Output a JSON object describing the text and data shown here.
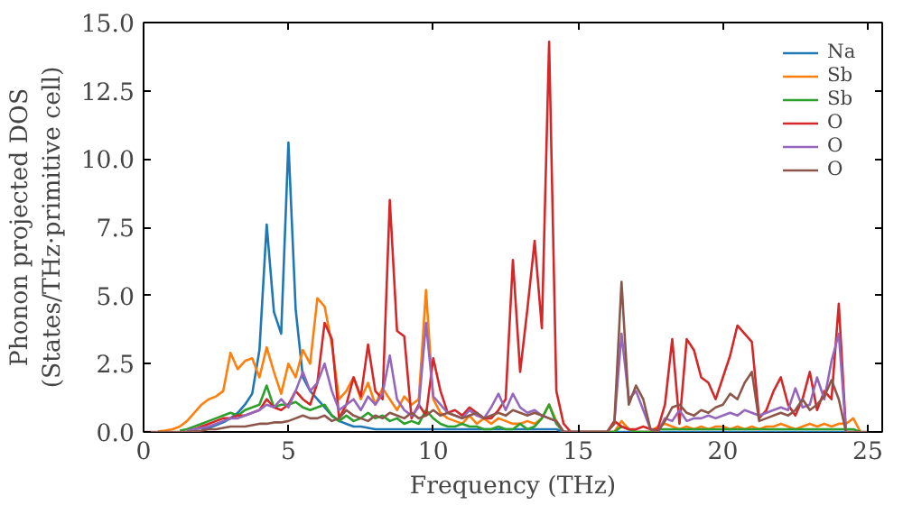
{
  "chart_data": {
    "type": "line",
    "xlabel": "Frequency (THz)",
    "ylabel": "Phonon projected DOS\n(States/THz·primitive cell)",
    "x": [
      0,
      0.25,
      0.5,
      0.75,
      1,
      1.25,
      1.5,
      1.75,
      2,
      2.25,
      2.5,
      2.75,
      3,
      3.25,
      3.5,
      3.75,
      4,
      4.25,
      4.5,
      4.75,
      5,
      5.25,
      5.5,
      5.75,
      6,
      6.25,
      6.5,
      6.75,
      7,
      7.25,
      7.5,
      7.75,
      8,
      8.25,
      8.5,
      8.75,
      9,
      9.25,
      9.5,
      9.75,
      10,
      10.25,
      10.5,
      10.75,
      11,
      11.25,
      11.5,
      11.75,
      12,
      12.25,
      12.5,
      12.75,
      13,
      13.25,
      13.5,
      13.75,
      14,
      14.25,
      14.5,
      14.75,
      15,
      15.25,
      15.5,
      15.75,
      16,
      16.25,
      16.5,
      16.75,
      17,
      17.25,
      17.5,
      17.75,
      18,
      18.25,
      18.5,
      18.75,
      19,
      19.25,
      19.5,
      19.75,
      20,
      20.25,
      20.5,
      20.75,
      21,
      21.25,
      21.5,
      21.75,
      22,
      22.25,
      22.5,
      22.75,
      23,
      23.25,
      23.5,
      23.75,
      24,
      24.25,
      24.5,
      24.75,
      25
    ],
    "series": [
      {
        "name": "Na",
        "color": "#1f77b4",
        "values": [
          null,
          null,
          null,
          null,
          null,
          null,
          null,
          null,
          0.1,
          0.15,
          0.25,
          0.35,
          0.5,
          0.7,
          1.0,
          1.4,
          3.0,
          7.6,
          4.4,
          3.6,
          10.6,
          4.5,
          2.0,
          1.5,
          1.2,
          0.9,
          0.6,
          0.4,
          0.3,
          0.2,
          0.2,
          0.15,
          0.1,
          0.1,
          0.1,
          0.1,
          0.1,
          0.1,
          0.1,
          0.1,
          0.1,
          0.1,
          0.1,
          0.1,
          0.1,
          0.1,
          0.1,
          0.1,
          0.1,
          0.1,
          0.1,
          0.1,
          0.1,
          0.1,
          0.1,
          0.1,
          0.1,
          0.1,
          0,
          0,
          0,
          0,
          0,
          0,
          0,
          0,
          0,
          0,
          0,
          0,
          0,
          0,
          0,
          0,
          0,
          0,
          0,
          0,
          0,
          0,
          0,
          0,
          0,
          0,
          0,
          0,
          0,
          0,
          0,
          0,
          0,
          0,
          0,
          0,
          0,
          0,
          0,
          0,
          0,
          null,
          null
        ]
      },
      {
        "name": "Sb",
        "color": "#ff7f0e",
        "values": [
          null,
          null,
          0.02,
          0.05,
          0.1,
          0.2,
          0.4,
          0.7,
          1.0,
          1.2,
          1.3,
          1.5,
          2.9,
          2.3,
          2.6,
          2.7,
          2.0,
          3.1,
          2.2,
          1.4,
          2.5,
          2.0,
          3.0,
          2.5,
          4.9,
          4.6,
          3.2,
          1.2,
          1.5,
          2.0,
          1.2,
          1.8,
          1.0,
          1.6,
          1.2,
          0.8,
          1.3,
          1.0,
          1.2,
          5.2,
          1.2,
          0.7,
          0.5,
          0.4,
          0.3,
          0.6,
          0.3,
          0.5,
          0.3,
          0.5,
          0.4,
          0.3,
          0.3,
          0.4,
          0.3,
          0.5,
          1.0,
          0.4,
          0,
          0,
          0,
          0,
          0,
          0,
          0,
          0,
          0.4,
          0.1,
          0,
          0,
          0,
          0.2,
          0.3,
          0.2,
          0.1,
          0.2,
          0.1,
          0.2,
          0.1,
          0.2,
          0.2,
          0.1,
          0.2,
          0.1,
          0.2,
          0.1,
          0.2,
          0.2,
          0.3,
          0.2,
          0.1,
          0.2,
          0.3,
          0.2,
          0.3,
          0.2,
          0.3,
          0.3,
          0.5,
          0,
          null
        ]
      },
      {
        "name": "Sb",
        "color": "#2ca02c",
        "values": [
          null,
          null,
          null,
          null,
          null,
          0.05,
          0.1,
          0.2,
          0.3,
          0.4,
          0.5,
          0.6,
          0.7,
          0.6,
          0.8,
          0.9,
          1.0,
          1.7,
          0.9,
          1.0,
          1.0,
          1.1,
          0.9,
          0.8,
          0.9,
          1.0,
          0.6,
          0.4,
          0.6,
          0.4,
          0.5,
          0.7,
          0.5,
          0.6,
          0.4,
          0.5,
          0.3,
          0.4,
          0.3,
          0.8,
          0.5,
          0.3,
          0.2,
          0.2,
          0.3,
          0.2,
          0.2,
          0.1,
          0.1,
          0.2,
          0.1,
          0.1,
          0.3,
          0.1,
          0.2,
          0.5,
          1.0,
          0.3,
          0,
          0,
          0,
          0,
          0,
          0,
          0,
          0,
          0.2,
          0.1,
          0,
          0,
          0,
          0.1,
          0.1,
          0.1,
          0.1,
          0.1,
          0.1,
          0.1,
          0.1,
          0.1,
          0.1,
          0.1,
          0.1,
          0.1,
          0.1,
          0.1,
          0.1,
          0.1,
          0.1,
          0.1,
          0.1,
          0.1,
          0.1,
          0.1,
          0.1,
          0.1,
          0.1,
          0.1,
          0.1,
          0,
          null
        ]
      },
      {
        "name": "O",
        "color": "#d62728",
        "values": [
          null,
          null,
          null,
          null,
          null,
          null,
          0.05,
          0.1,
          0.2,
          0.3,
          0.4,
          0.5,
          0.5,
          0.6,
          0.6,
          0.7,
          0.8,
          1.2,
          0.9,
          0.8,
          1.0,
          1.5,
          1.2,
          1.0,
          1.8,
          4.0,
          3.4,
          0.5,
          1.0,
          2.0,
          1.3,
          3.2,
          1.5,
          1.2,
          8.5,
          3.7,
          3.5,
          0.5,
          1.0,
          0.6,
          2.7,
          1.5,
          0.7,
          0.8,
          0.6,
          0.9,
          0.7,
          0.5,
          0.5,
          0.8,
          1.2,
          6.3,
          2.2,
          4.5,
          7.0,
          3.8,
          14.3,
          1.5,
          0.3,
          0,
          0,
          0,
          0,
          0,
          0,
          0.4,
          0.2,
          0.1,
          0.1,
          0.2,
          0.1,
          0.1,
          1.0,
          3.4,
          0.3,
          3.4,
          3.0,
          2.0,
          1.8,
          1.2,
          2.0,
          2.8,
          3.9,
          3.6,
          3.3,
          0.5,
          0.8,
          1.5,
          2.0,
          1.0,
          0.6,
          1.2,
          2.2,
          0.8,
          1.5,
          1.2,
          4.7,
          0,
          null,
          null,
          null
        ]
      },
      {
        "name": "O",
        "color": "#9467bd",
        "values": [
          null,
          null,
          null,
          null,
          null,
          null,
          0.05,
          0.1,
          0.15,
          0.2,
          0.3,
          0.4,
          0.5,
          0.5,
          0.6,
          0.7,
          0.8,
          1.0,
          0.9,
          1.2,
          0.9,
          1.5,
          2.2,
          1.5,
          1.8,
          2.5,
          1.5,
          0.8,
          1.0,
          1.2,
          0.8,
          1.3,
          1.0,
          1.4,
          2.8,
          1.2,
          0.8,
          0.6,
          0.9,
          4.0,
          1.3,
          1.0,
          0.7,
          0.6,
          0.5,
          0.8,
          0.6,
          0.5,
          0.9,
          1.4,
          0.8,
          1.4,
          0.9,
          0.7,
          0.8,
          0.6,
          0.5,
          0.4,
          0,
          0,
          0,
          0,
          0,
          0,
          0,
          0.3,
          3.6,
          1.2,
          1.5,
          0.8,
          0.1,
          0,
          0.5,
          0.4,
          0.8,
          0.4,
          0.5,
          0.5,
          0.6,
          0.5,
          0.6,
          0.7,
          0.6,
          0.8,
          0.7,
          0.6,
          0.7,
          0.8,
          0.9,
          0.8,
          1.6,
          0.9,
          1.0,
          2.0,
          1.2,
          2.6,
          3.6,
          0,
          null,
          null,
          null
        ]
      },
      {
        "name": "O",
        "color": "#8c564b",
        "values": [
          0,
          0,
          0,
          0,
          0,
          0,
          0,
          0.02,
          0.05,
          0.1,
          0.1,
          0.15,
          0.2,
          0.2,
          0.2,
          0.25,
          0.3,
          0.3,
          0.35,
          0.35,
          0.4,
          0.5,
          0.6,
          0.5,
          0.5,
          0.6,
          0.4,
          0.5,
          0.8,
          0.6,
          0.5,
          0.4,
          0.6,
          0.5,
          0.7,
          0.6,
          0.5,
          0.7,
          0.5,
          0.6,
          0.8,
          0.6,
          0.7,
          0.6,
          0.5,
          0.6,
          0.7,
          0.5,
          0.6,
          0.7,
          0.6,
          0.8,
          0.7,
          0.6,
          0.7,
          0.6,
          0.5,
          0.4,
          0,
          0,
          0,
          0,
          0,
          0,
          0,
          0.3,
          5.5,
          1.0,
          1.7,
          1.2,
          0.1,
          0,
          0.4,
          0.9,
          1.0,
          0.7,
          0.6,
          0.8,
          0.7,
          0.9,
          1.0,
          1.4,
          1.2,
          1.8,
          2.2,
          0.4,
          0.5,
          0.6,
          0.7,
          0.6,
          0.8,
          1.2,
          0.8,
          1.0,
          1.3,
          1.9,
          1.2,
          0,
          0,
          0,
          0
        ]
      }
    ],
    "xlim": [
      0,
      25.5
    ],
    "xticks": [
      0,
      5,
      10,
      15,
      20,
      25
    ],
    "ylim": [
      0,
      15
    ],
    "yticks": [
      {
        "value": 0,
        "label": "0.0"
      },
      {
        "value": 2.5,
        "label": "2.5"
      },
      {
        "value": 5,
        "label": "5.0"
      },
      {
        "value": 7.5,
        "label": "7.5"
      },
      {
        "value": 10,
        "label": "10.0"
      },
      {
        "value": 12.5,
        "label": "12.5"
      },
      {
        "value": 15,
        "label": "15.0"
      }
    ],
    "legend": "top right",
    "grid": false
  }
}
